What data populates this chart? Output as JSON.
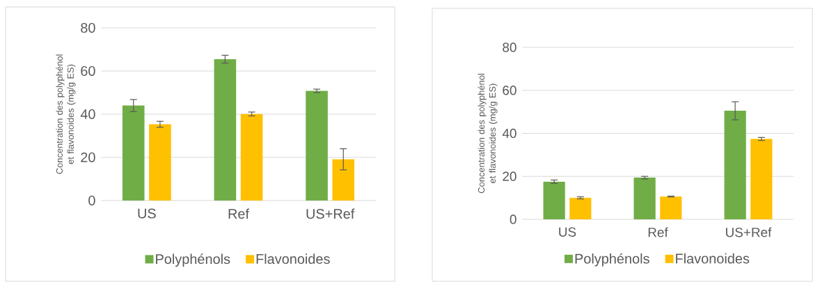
{
  "chart_data": [
    {
      "type": "bar",
      "ylabel": "Concentration des polyphénol et flavonoides (mg/g ES)",
      "categories": [
        "US",
        "Ref",
        "US+Ref"
      ],
      "series": [
        {
          "name": "Polyphénols",
          "color": "#70ad47",
          "values": [
            44.0,
            65.5,
            50.8
          ],
          "errors": [
            2.8,
            1.8,
            0.8
          ]
        },
        {
          "name": "Flavonoides",
          "color": "#ffc000",
          "values": [
            35.3,
            40.1,
            19.1
          ],
          "errors": [
            1.4,
            0.9,
            4.9
          ]
        }
      ],
      "ylim": [
        0,
        80
      ],
      "yticks": [
        0,
        20,
        40,
        60,
        80
      ],
      "grid": "y",
      "legend": "bottom"
    },
    {
      "type": "bar",
      "ylabel": "Concentration des polyphénol et flavonoides (mg/g ES)",
      "categories": [
        "US",
        "Ref",
        "US+Ref"
      ],
      "series": [
        {
          "name": "Polyphénols",
          "color": "#70ad47",
          "values": [
            17.5,
            19.4,
            50.5
          ],
          "errors": [
            0.8,
            0.6,
            4.2
          ]
        },
        {
          "name": "Flavonoides",
          "color": "#ffc000",
          "values": [
            10.0,
            10.6,
            37.4
          ],
          "errors": [
            0.5,
            0.2,
            0.7
          ]
        }
      ],
      "ylim": [
        0,
        80
      ],
      "yticks": [
        0,
        20,
        40,
        60,
        80
      ],
      "grid": "y",
      "legend": "bottom"
    }
  ]
}
